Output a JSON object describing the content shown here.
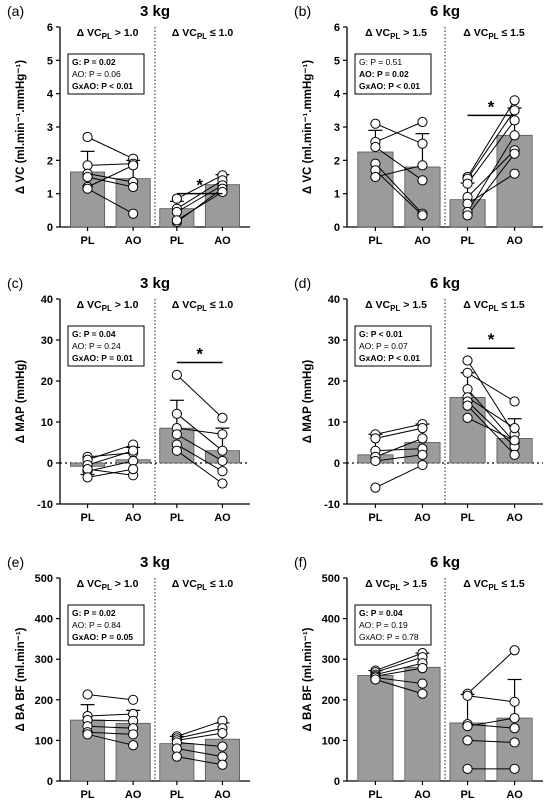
{
  "chart_data": [
    {
      "type": "bar",
      "panel": "(a)",
      "title": "3 kg",
      "ylabel": "Δ VC (ml.min⁻¹.mmHg⁻¹)",
      "ylim": [
        0,
        6
      ],
      "yticks": [
        0,
        1,
        2,
        3,
        4,
        5,
        6
      ],
      "categories": [
        "PL",
        "AO",
        "PL",
        "AO"
      ],
      "groups": [
        "Δ VCPL > 1.0",
        "Δ VCPL ≤ 1.0"
      ],
      "means": [
        1.65,
        1.45,
        0.55,
        1.27
      ],
      "sd": [
        0.62,
        0.55,
        0.22,
        0.3
      ],
      "subjects": [
        [
          [
            2.7,
            2.05
          ],
          [
            1.85,
            1.9
          ],
          [
            1.6,
            1.35
          ],
          [
            1.5,
            1.2
          ],
          [
            1.2,
            1.85
          ],
          [
            1.15,
            0.4
          ]
        ],
        [
          [
            0.85,
            1.55
          ],
          [
            0.55,
            1.4
          ],
          [
            0.45,
            1.25
          ],
          [
            0.15,
            1.15
          ],
          [
            0.2,
            1.05
          ]
        ]
      ],
      "stats": [
        "G: P = 0.02",
        "AO: P = 0.06",
        "GxAO: P < 0.01"
      ],
      "stats_bold": [
        true,
        false,
        true
      ],
      "stats_box_side": "left",
      "significance": {
        "label": "*",
        "value": 1.0,
        "group": 1
      }
    },
    {
      "type": "bar",
      "panel": "(b)",
      "title": "6 kg",
      "ylabel": "Δ VC (ml.min⁻¹.mmHg⁻¹)",
      "ylim": [
        0,
        6
      ],
      "yticks": [
        0,
        1,
        2,
        3,
        4,
        5,
        6
      ],
      "categories": [
        "PL",
        "AO",
        "PL",
        "AO"
      ],
      "groups": [
        "Δ VCPL > 1.5",
        "Δ VCPL ≤ 1.5"
      ],
      "means": [
        2.25,
        1.8,
        0.82,
        2.75
      ],
      "sd": [
        0.65,
        1.0,
        0.5,
        0.82
      ],
      "subjects": [
        [
          [
            3.1,
            2.5
          ],
          [
            2.55,
            3.15
          ],
          [
            2.4,
            1.4
          ],
          [
            1.9,
            0.4
          ],
          [
            1.7,
            0.35
          ],
          [
            1.5,
            1.85
          ]
        ],
        [
          [
            1.5,
            3.8
          ],
          [
            1.45,
            3.5
          ],
          [
            1.3,
            3.2
          ],
          [
            0.9,
            2.3
          ],
          [
            0.7,
            1.6
          ],
          [
            0.45,
            2.75
          ],
          [
            0.35,
            2.2
          ]
        ]
      ],
      "stats": [
        "G: P = 0.51",
        "AO: P = 0.02",
        "GxAO: P < 0.01"
      ],
      "stats_bold": [
        false,
        true,
        true
      ],
      "stats_box_side": "left",
      "significance": {
        "label": "*",
        "value": 3.35,
        "group": 1
      }
    },
    {
      "type": "bar",
      "panel": "(c)",
      "title": "3 kg",
      "ylabel": "Δ MAP (mmHg)",
      "ylim": [
        -10,
        40
      ],
      "yticks": [
        -10,
        0,
        10,
        20,
        30,
        40
      ],
      "zero_line": true,
      "categories": [
        "PL",
        "AO",
        "PL",
        "AO"
      ],
      "groups": [
        "Δ VCPL > 1.0",
        "Δ VCPL ≤ 1.0"
      ],
      "means": [
        -0.8,
        0.8,
        8.5,
        3.0
      ],
      "sd": [
        2.0,
        3.0,
        6.8,
        5.5
      ],
      "subjects": [
        [
          [
            1.5,
            2.5
          ],
          [
            0.8,
            4.5
          ],
          [
            -0.5,
            3.0
          ],
          [
            -2.0,
            0.5
          ],
          [
            -1.5,
            -3.0
          ],
          [
            -3.5,
            -1.5
          ]
        ],
        [
          [
            21.5,
            11.0
          ],
          [
            12.0,
            3.0
          ],
          [
            8.5,
            7.0
          ],
          [
            7.0,
            0.5
          ],
          [
            4.5,
            -2.0
          ],
          [
            3.0,
            -5.0
          ]
        ]
      ],
      "stats": [
        "G: P = 0.04",
        "AO: P = 0.24",
        "GxAO: P = 0.01"
      ],
      "stats_bold": [
        true,
        false,
        true
      ],
      "stats_box_side": "left",
      "significance": {
        "label": "*",
        "value": 24.5,
        "group": 1
      }
    },
    {
      "type": "bar",
      "panel": "(d)",
      "title": "6 kg",
      "ylabel": "Δ MAP (mmHg)",
      "ylim": [
        -10,
        40
      ],
      "yticks": [
        -10,
        0,
        10,
        20,
        30,
        40
      ],
      "zero_line": true,
      "categories": [
        "PL",
        "AO",
        "PL",
        "AO"
      ],
      "groups": [
        "Δ VCPL > 1.5",
        "Δ VCPL ≤ 1.5"
      ],
      "means": [
        2.0,
        5.0,
        16.0,
        6.0
      ],
      "sd": [
        5.0,
        4.5,
        6.0,
        4.8
      ],
      "subjects": [
        [
          [
            7.0,
            9.5
          ],
          [
            6.0,
            8.5
          ],
          [
            3.0,
            3.5
          ],
          [
            1.5,
            6.0
          ],
          [
            0.5,
            2.0
          ],
          [
            -6.0,
            -0.5
          ]
        ],
        [
          [
            25.0,
            7.0
          ],
          [
            22.0,
            15.0
          ],
          [
            18.0,
            5.0
          ],
          [
            16.0,
            8.5
          ],
          [
            15.0,
            4.0
          ],
          [
            14.0,
            2.0
          ],
          [
            11.0,
            5.5
          ]
        ]
      ],
      "stats": [
        "G: P < 0.01",
        "AO: P = 0.07",
        "GxAO: P < 0.01"
      ],
      "stats_bold": [
        true,
        false,
        true
      ],
      "stats_box_side": "left",
      "significance": {
        "label": "*",
        "value": 28.0,
        "group": 1
      }
    },
    {
      "type": "bar",
      "panel": "(e)",
      "title": "3 kg",
      "ylabel": "Δ BA BF (ml.min⁻¹)",
      "ylim": [
        0,
        500
      ],
      "yticks": [
        0,
        100,
        200,
        300,
        400,
        500
      ],
      "categories": [
        "PL",
        "AO",
        "PL",
        "AO"
      ],
      "groups": [
        "Δ VCPL > 1.0",
        "Δ VCPL ≤ 1.0"
      ],
      "means": [
        150,
        142,
        92,
        103
      ],
      "sd": [
        38,
        32,
        18,
        40
      ],
      "subjects": [
        [
          [
            213,
            200
          ],
          [
            160,
            165
          ],
          [
            150,
            148
          ],
          [
            135,
            130
          ],
          [
            120,
            115
          ],
          [
            115,
            88
          ]
        ],
        [
          [
            110,
            148
          ],
          [
            105,
            130
          ],
          [
            100,
            118
          ],
          [
            95,
            85
          ],
          [
            80,
            60
          ],
          [
            60,
            40
          ]
        ]
      ],
      "stats": [
        "G: P = 0.02",
        "AO: P = 0.84",
        "GxAO: P = 0.05"
      ],
      "stats_bold": [
        true,
        false,
        true
      ],
      "stats_box_side": "left",
      "significance": null
    },
    {
      "type": "bar",
      "panel": "(f)",
      "title": "6 kg",
      "ylabel": "Δ BA BF (ml.min⁻¹)",
      "ylim": [
        0,
        500
      ],
      "yticks": [
        0,
        100,
        200,
        300,
        400,
        500
      ],
      "categories": [
        "PL",
        "AO",
        "PL",
        "AO"
      ],
      "groups": [
        "Δ VCPL > 1.5",
        "Δ VCPL ≤ 1.5"
      ],
      "means": [
        260,
        280,
        143,
        155
      ],
      "sd": [
        12,
        35,
        70,
        95
      ],
      "subjects": [
        [
          [
            272,
            315
          ],
          [
            268,
            305
          ],
          [
            262,
            290
          ],
          [
            258,
            278
          ],
          [
            255,
            240
          ],
          [
            250,
            215
          ]
        ],
        [
          [
            215,
            322
          ],
          [
            210,
            195
          ],
          [
            140,
            130
          ],
          [
            100,
            95
          ],
          [
            30,
            30
          ],
          [
            135,
            155
          ]
        ]
      ],
      "stats": [
        "G: P = 0.04",
        "AO: P = 0.19",
        "GxAO: P = 0.78"
      ],
      "stats_bold": [
        true,
        false,
        false
      ],
      "stats_box_side": "left",
      "significance": null
    }
  ]
}
